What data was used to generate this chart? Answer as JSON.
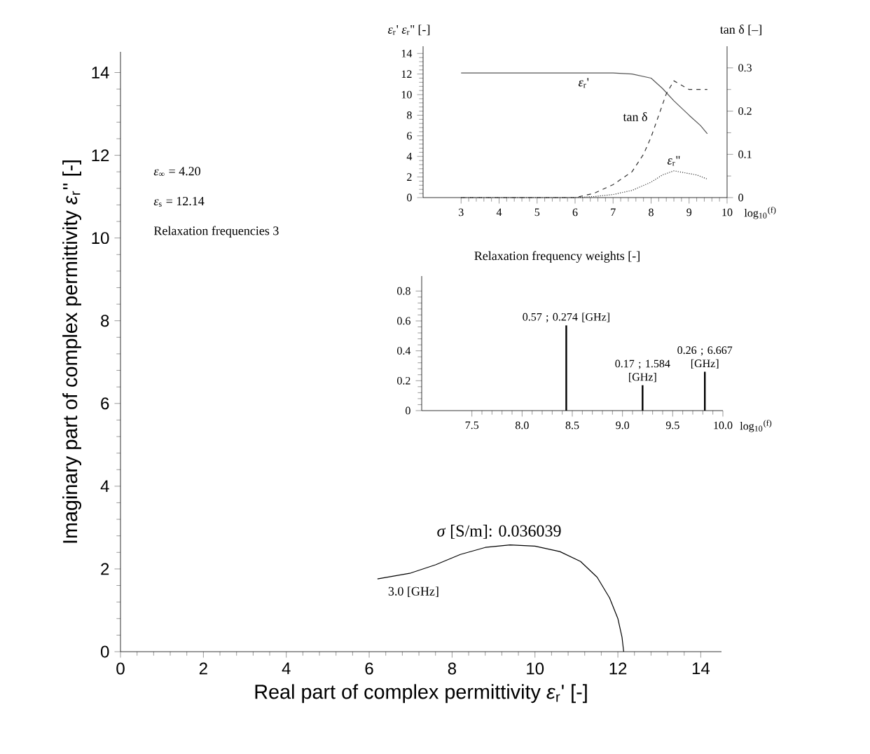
{
  "chart_data": [
    {
      "type": "line",
      "xlabel": "Real part of complex permittivity  *ε*$_{r}$'  [-]",
      "ylabel": "Imaginary part of complex permittivity *ε*$_{r}$''  [-]",
      "color": "#000000",
      "x": [
        6.2,
        7.0,
        7.6,
        8.2,
        8.8,
        9.4,
        10.0,
        10.6,
        11.1,
        11.5,
        11.8,
        12.0,
        12.1,
        12.14
      ],
      "values": [
        1.76,
        1.9,
        2.1,
        2.35,
        2.52,
        2.58,
        2.55,
        2.42,
        2.18,
        1.8,
        1.3,
        0.8,
        0.35,
        0
      ],
      "xlim": [
        0,
        14.5
      ],
      "ylim": [
        0,
        14.5
      ],
      "xticks": [
        0,
        2,
        4,
        6,
        8,
        10,
        12,
        14
      ],
      "yticks": [
        0,
        2,
        4,
        6,
        8,
        10,
        12,
        14
      ],
      "annotations": [
        "*ε*$_{∞}$ = 4.20",
        "*ε*$_{s}$ = 12.14",
        "Relaxation frequencies 3",
        "*σ* [S/m]: 0.036039",
        {
          "text": "3.0 [GHz]",
          "x": 6.2,
          "y": 1.76
        }
      ]
    },
    {
      "type": "line",
      "ylabel": "*ε*$_{r}$'  *ε*$_{r}$'' [-]",
      "y2label": "tan δ [–]",
      "xlabel": "log$_{10}$$^{(f)}$",
      "xlim": [
        2,
        10
      ],
      "ylim": [
        0,
        14.7
      ],
      "y2lim": [
        0,
        0.35
      ],
      "xticks": [
        3,
        4,
        5,
        6,
        7,
        8,
        9,
        10
      ],
      "yticks": [
        0,
        2,
        4,
        6,
        8,
        10,
        12,
        14
      ],
      "y2ticks": [
        0,
        0.1,
        0.2,
        0.3
      ],
      "series": [
        {
          "name": "*ε*$_{r}$'",
          "color": "#555555",
          "line_style": "solid",
          "x": [
            3,
            6,
            7,
            7.5,
            8.0,
            8.3,
            8.6,
            9.0,
            9.3,
            9.48
          ],
          "values": [
            12.1,
            12.1,
            12.1,
            12.0,
            11.6,
            10.6,
            9.4,
            8.0,
            7.0,
            6.2
          ]
        },
        {
          "name": "tan δ",
          "color": "#333333",
          "line_style": "dashed",
          "axis": "y2",
          "x": [
            3,
            6,
            6.5,
            7,
            7.5,
            7.8,
            8.0,
            8.2,
            8.4,
            8.6,
            8.8,
            9.0,
            9.2,
            9.48
          ],
          "values": [
            0,
            0,
            0.01,
            0.03,
            0.06,
            0.1,
            0.14,
            0.19,
            0.24,
            0.27,
            0.26,
            0.25,
            0.25,
            0.25
          ]
        },
        {
          "name": "*ε*$_{r}$''",
          "color": "#333333",
          "line_style": "dotted",
          "x": [
            3,
            6,
            6.5,
            7,
            7.5,
            8,
            8.3,
            8.6,
            8.9,
            9.2,
            9.48
          ],
          "values": [
            0,
            0,
            0.1,
            0.3,
            0.7,
            1.5,
            2.2,
            2.6,
            2.4,
            2.2,
            1.8
          ]
        }
      ]
    },
    {
      "type": "bar",
      "title": "Relaxation frequency weights [-]",
      "xlabel": "log$_{10}$$^{(f)}$",
      "color": "#000000",
      "x": [
        8.44,
        9.2,
        9.82
      ],
      "values": [
        0.57,
        0.17,
        0.26
      ],
      "value_labels": [
        "0.57 ; 0.274 [GHz]",
        "0.17 ; 1.584 [GHz]",
        "0.26 ; 6.667 [GHz]"
      ],
      "xlim": [
        7,
        10
      ],
      "ylim": [
        0,
        0.9
      ],
      "xticks": [
        7.5,
        {
          "value": 8,
          "label": "8.0"
        },
        8.5,
        {
          "value": 9,
          "label": "9.0"
        },
        9.5,
        {
          "value": 10,
          "label": "10.0"
        }
      ],
      "yticks": [
        0,
        0.2,
        0.4,
        0.6,
        0.8
      ]
    }
  ]
}
